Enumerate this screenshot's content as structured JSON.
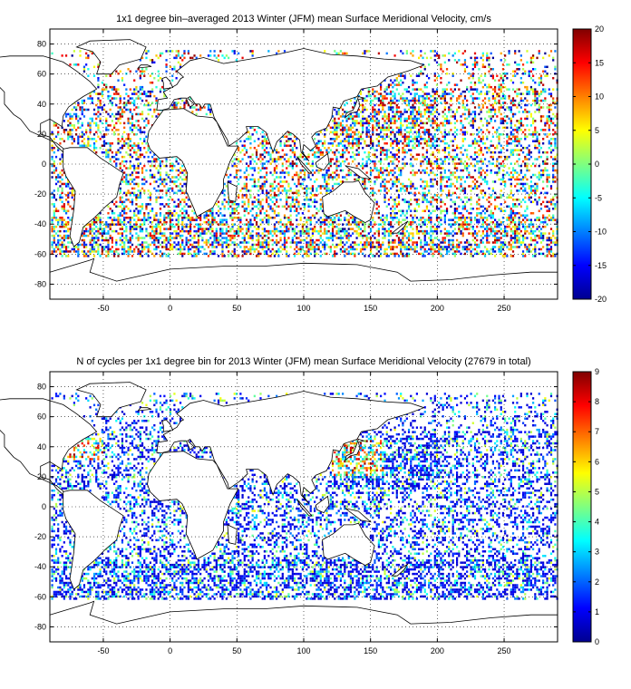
{
  "chart_data": [
    {
      "type": "heatmap",
      "title": "1x1 degree bin–averaged 2013 Winter (JFM) mean Surface Meridional Velocity, cm/s",
      "xlabel": "",
      "ylabel": "",
      "xlim": [
        -90,
        290
      ],
      "ylim": [
        -90,
        90
      ],
      "x_ticks": [
        -50,
        0,
        50,
        100,
        150,
        200,
        250
      ],
      "y_ticks": [
        80,
        60,
        40,
        20,
        0,
        -20,
        -40,
        -60,
        -80
      ],
      "grid": true,
      "colorbar": {
        "range": [
          -20,
          20
        ],
        "ticks": [
          20,
          15,
          10,
          5,
          0,
          -5,
          -10,
          -15,
          -20
        ],
        "colormap": "jet"
      },
      "description": "Scattered 1x1 degree bins of meridional velocity over the world ocean, noisy values spanning the full color range."
    },
    {
      "type": "heatmap",
      "title": "N of cycles per 1x1 degree bin for 2013 Winter (JFM) mean Surface Meridional Velocity (27679 in total)",
      "xlabel": "",
      "ylabel": "",
      "xlim": [
        -90,
        290
      ],
      "ylim": [
        -90,
        90
      ],
      "x_ticks": [
        -50,
        0,
        50,
        100,
        150,
        200,
        250
      ],
      "y_ticks": [
        80,
        60,
        40,
        20,
        0,
        -20,
        -40,
        -60,
        -80
      ],
      "grid": true,
      "colorbar": {
        "range": [
          0,
          9
        ],
        "ticks": [
          9,
          8,
          7,
          6,
          5,
          4,
          3,
          2,
          1,
          0
        ],
        "colormap": "jet"
      },
      "description": "Counts per bin, mostly 1-2 (blue) with higher counts in the Kuroshio and Gulf Stream regions."
    }
  ]
}
